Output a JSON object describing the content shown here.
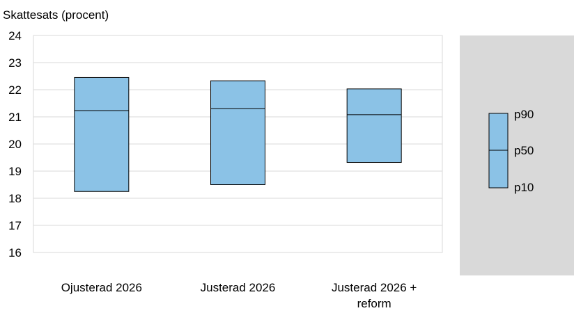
{
  "chart_data": {
    "type": "box",
    "ylabel": "Skattesats (procent)",
    "ylim": [
      16,
      24
    ],
    "yticks": [
      16,
      17,
      18,
      19,
      20,
      21,
      22,
      23,
      24
    ],
    "grid": true,
    "colors": {
      "box_fill": "#8bc2e6",
      "box_stroke": "#000000",
      "grid": "#d9d9d9",
      "legend_panel": "#d9d9d9"
    },
    "categories": [
      {
        "label_lines": [
          "Ojusterad 2026"
        ],
        "p10": 18.25,
        "p50": 21.23,
        "p90": 22.45
      },
      {
        "label_lines": [
          "Justerad 2026"
        ],
        "p10": 18.5,
        "p50": 21.3,
        "p90": 22.33
      },
      {
        "label_lines": [
          "Justerad 2026 +",
          "reform"
        ],
        "p10": 19.32,
        "p50": 21.08,
        "p90": 22.03
      }
    ],
    "legend": {
      "placement": "right",
      "items": [
        "p90",
        "p50",
        "p10"
      ]
    }
  }
}
